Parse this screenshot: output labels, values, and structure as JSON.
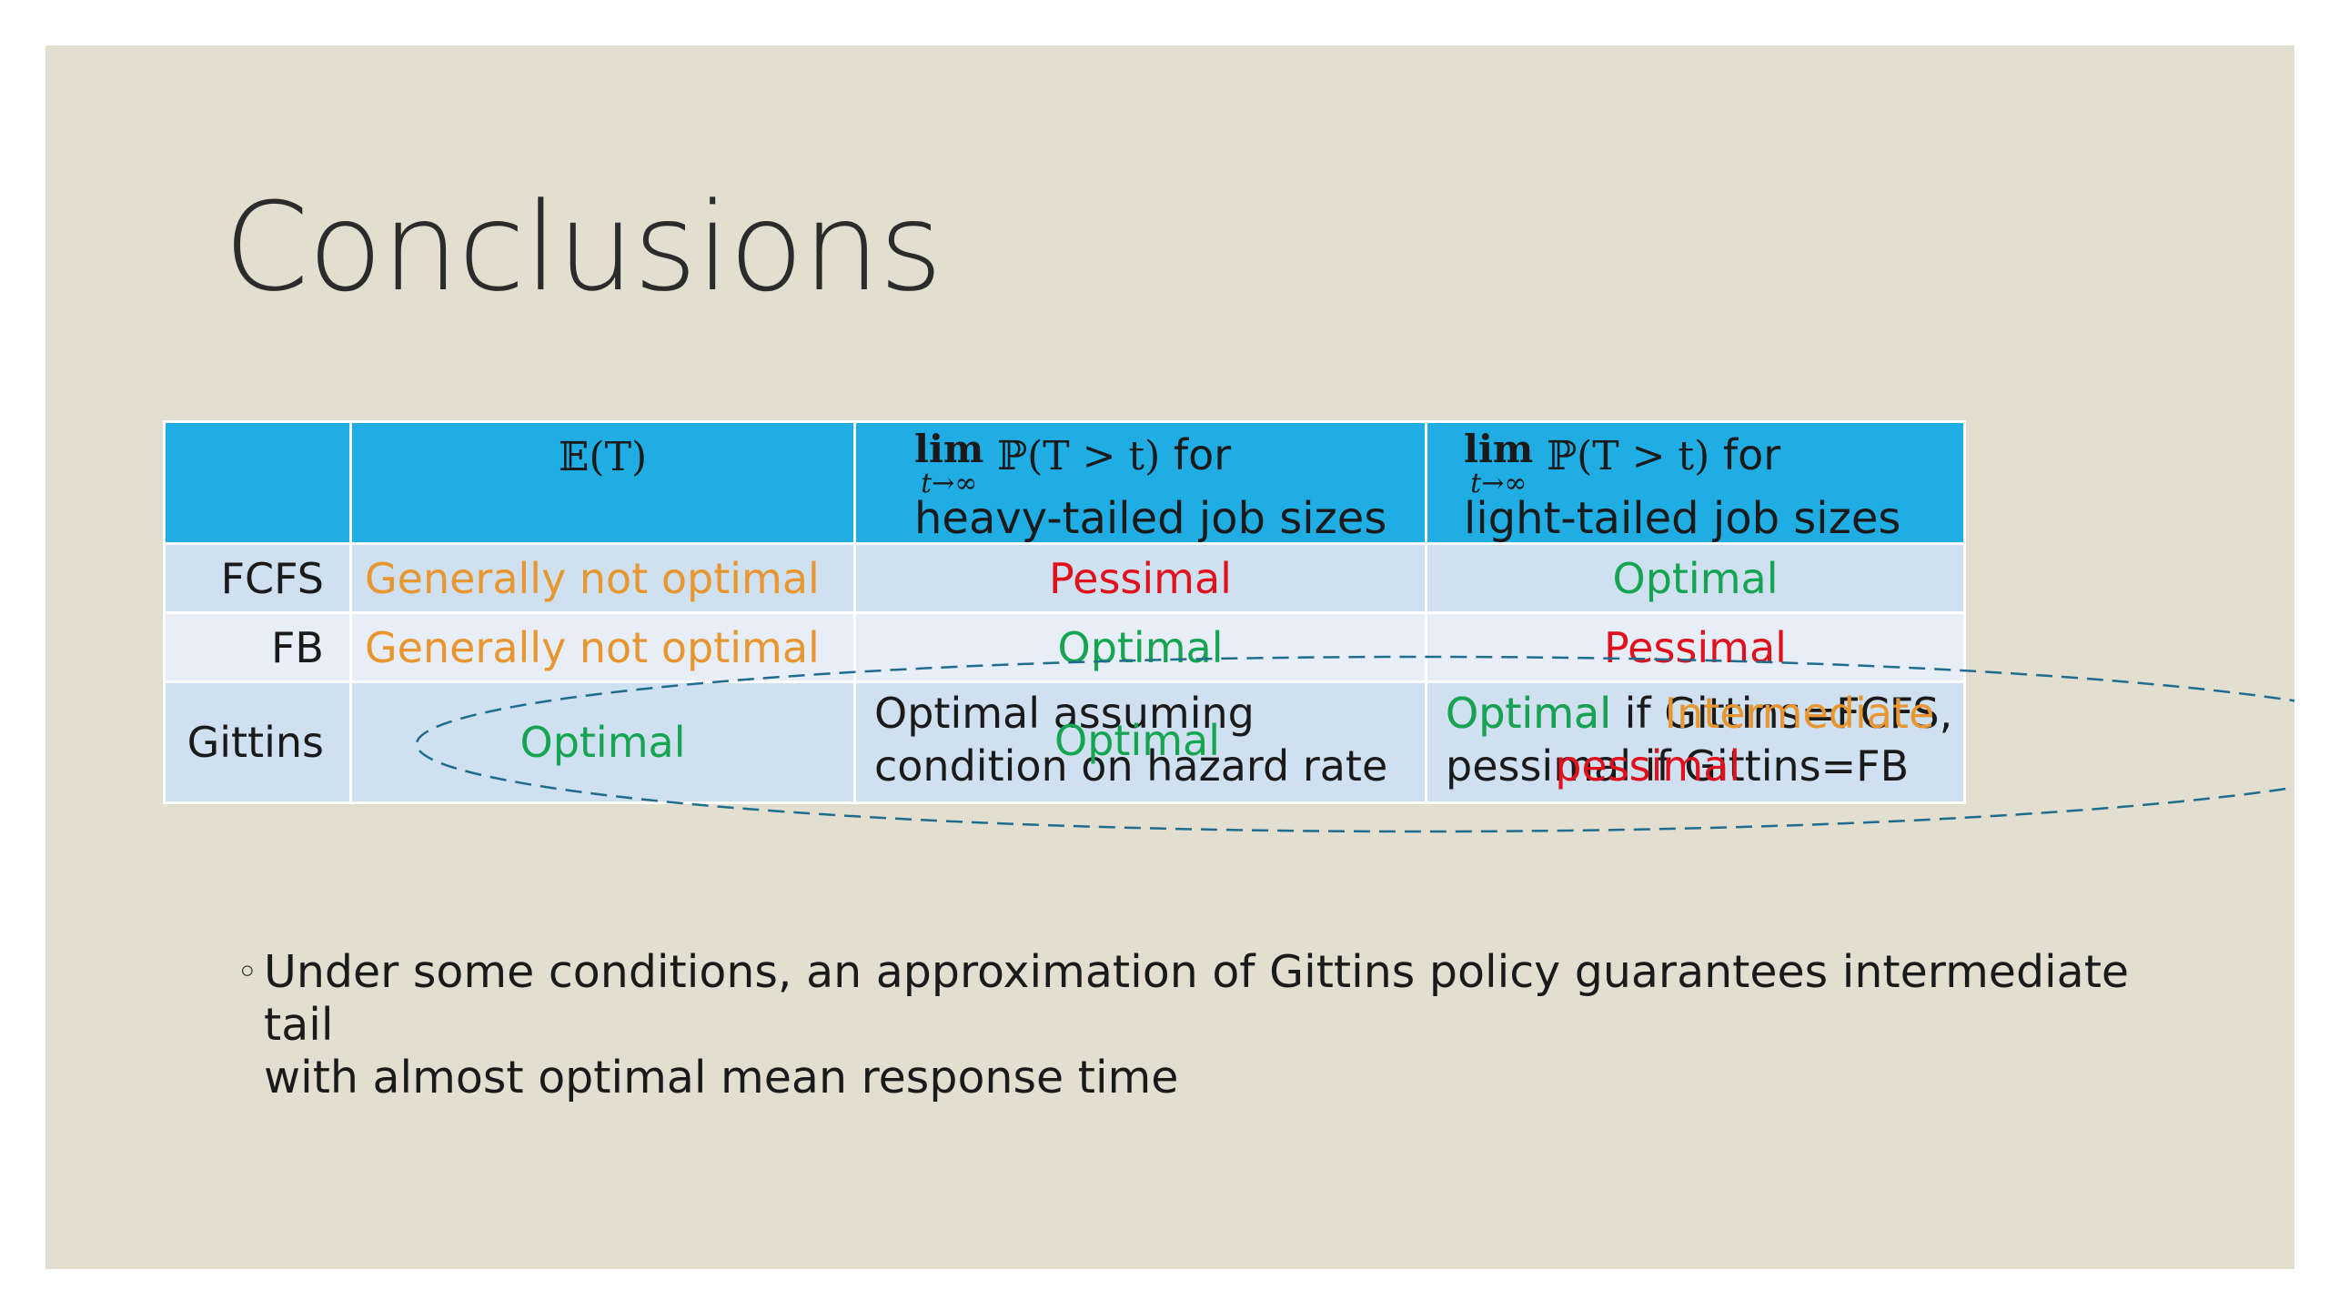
{
  "slide": {
    "title": "Conclusions",
    "table": {
      "headers": {
        "col1": "𝔼(T)",
        "col2_lim_word": "lim",
        "col2_lim_sub": "t→∞",
        "col2_prob": "ℙ(T > t)",
        "col2_for": "for",
        "col2_line2": "heavy-tailed job sizes",
        "col3_lim_word": "lim",
        "col3_lim_sub": "t→∞",
        "col3_prob": "ℙ(T > t)",
        "col3_for": "for",
        "col3_line2": "light-tailed job sizes"
      },
      "rows": [
        {
          "policy": "FCFS",
          "mean": "Generally not optimal",
          "heavy": "Pessimal",
          "light": "Optimal"
        },
        {
          "policy": "FB",
          "mean": "Generally not optimal",
          "heavy": "Optimal",
          "light": "Pessimal"
        },
        {
          "policy": "Gittins",
          "mean": "Optimal",
          "heavy_overlay_a_line1": "Optimal assuming",
          "heavy_overlay_a_line2": "condition on hazard rate",
          "heavy_overlay_b": "Optimal",
          "light_overlay_a_line1": "Optimal if Gittins=FCFS,",
          "light_overlay_a_line2": "pessimal if Gittins=FB",
          "light_overlay_b_line1a": "Optimal",
          "light_overlay_b_line1b": "Intermediate",
          "light_overlay_b_line2a": "or",
          "light_overlay_b_line2b": "pessimal"
        }
      ]
    },
    "bullet": {
      "line1": "Under some conditions, an approximation of Gittins policy guarantees intermediate tail",
      "line2": "with almost optimal mean response time"
    },
    "colors": {
      "slide_bg": "#e2dfd1",
      "header_bg": "#1fade3",
      "row_light": "#cfe0f0",
      "row_lighter": "#e8eef7",
      "orange": "#e8962f",
      "red": "#e0101c",
      "green": "#15a450",
      "ellipse_stroke": "#1e6c8e"
    }
  }
}
